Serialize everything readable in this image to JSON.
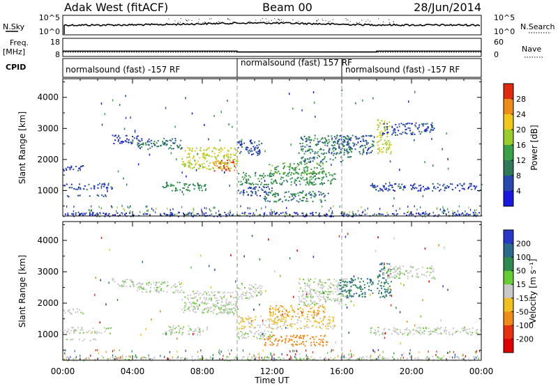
{
  "header": {
    "station": "Adak West (fitACF)",
    "beam": "Beam 00",
    "date": "28/Jun/2014"
  },
  "noise_panel": {
    "left_label": "N.Sky",
    "left_ticks": [
      "10^5",
      "10^0"
    ],
    "right_label": "N.Search",
    "right_ticks": [
      "10^5",
      "10^0"
    ]
  },
  "freq_panel": {
    "left_label_1": "Freq.",
    "left_label_2": "[MHz]",
    "left_ticks": [
      "18",
      "8"
    ],
    "right_label": "Nave",
    "right_ticks": [
      "60",
      "0"
    ],
    "freq_steps": [
      {
        "from": 0.0,
        "to": 10.0,
        "value": 10.8
      },
      {
        "from": 10.0,
        "to": 18.0,
        "value": 10.2
      },
      {
        "from": 18.0,
        "to": 24.0,
        "value": 10.8
      }
    ]
  },
  "cpid_panel": {
    "label": "CPID",
    "segments": [
      {
        "start": 0.0,
        "text": "normalsound (fast) -157 RF"
      },
      {
        "start": 10.0,
        "text": "normalsound (fast) 157 RF"
      },
      {
        "start": 16.0,
        "text": "normalsound (fast) -157 RF"
      }
    ]
  },
  "x_axis": {
    "label": "Time UT",
    "ticks": [
      "00:00",
      "04:00",
      "08:00",
      "12:00",
      "16:00",
      "20:00",
      "00:00"
    ],
    "range_hours": [
      0,
      24
    ],
    "markers_hours": [
      10,
      16
    ]
  },
  "power_panel": {
    "ylabel": "Slant Range [km]",
    "yticks": [
      "1000",
      "2000",
      "3000",
      "4000"
    ],
    "ylim": [
      180,
      4600
    ],
    "colorbar_label": "Power [dB]",
    "colorbar_ticks": [
      "4",
      "8",
      "12",
      "16",
      "20",
      "24",
      "28"
    ],
    "colors": [
      "#1818e0",
      "#2848b0",
      "#2e7a58",
      "#3aa04a",
      "#9acc2a",
      "#f0c818",
      "#f08a18",
      "#e02a10"
    ]
  },
  "velocity_panel": {
    "ylabel": "Slant Range [km]",
    "yticks": [
      "1000",
      "2000",
      "3000",
      "4000"
    ],
    "ylim": [
      180,
      4600
    ],
    "colorbar_label": "Velocity [m s⁻¹]",
    "colorbar_ticks": [
      "200",
      "100",
      "50",
      "15",
      "-15",
      "-50",
      "-100",
      "-200"
    ],
    "colors": [
      "#2838c8",
      "#2a6a8a",
      "#2e8a4e",
      "#66cc33",
      "#c8c8c8",
      "#f0c020",
      "#f08a18",
      "#e83010",
      "#e00000"
    ]
  },
  "chart_data": {
    "type": "heatmap",
    "title": "Adak West (fitACF)",
    "xlabel": "Time UT",
    "ylabel": "Slant Range [km]",
    "x_range": [
      0,
      24
    ],
    "y_range": [
      180,
      4600
    ],
    "echo_regions": [
      {
        "t0": 0.0,
        "t1": 1.2,
        "r0": 1650,
        "r1": 1850,
        "power_db": 6,
        "velocity": 0
      },
      {
        "t0": 0.0,
        "t1": 2.8,
        "r0": 1050,
        "r1": 1250,
        "power_db": 5,
        "velocity": 0
      },
      {
        "t0": 0.0,
        "t1": 2.6,
        "r0": 820,
        "r1": 880,
        "power_db": 6,
        "velocity": 0
      },
      {
        "t0": 2.8,
        "t1": 4.4,
        "r0": 2500,
        "r1": 2800,
        "power_db": 5,
        "velocity": 0
      },
      {
        "t0": 4.2,
        "t1": 6.8,
        "r0": 2350,
        "r1": 2700,
        "power_db": 9,
        "velocity": 0
      },
      {
        "t0": 5.7,
        "t1": 8.3,
        "r0": 1000,
        "r1": 1300,
        "power_db": 12,
        "velocity": 0
      },
      {
        "t0": 6.8,
        "t1": 10.0,
        "r0": 1700,
        "r1": 2400,
        "power_db": 20,
        "velocity": 0
      },
      {
        "t0": 8.6,
        "t1": 9.9,
        "r0": 1650,
        "r1": 2000,
        "power_db": 28,
        "velocity": 0
      },
      {
        "t0": 10.0,
        "t1": 11.4,
        "r0": 2150,
        "r1": 2650,
        "power_db": 6,
        "velocity": 0
      },
      {
        "t0": 10.0,
        "t1": 15.6,
        "r0": 1200,
        "r1": 1600,
        "power_db": 12,
        "velocity": -15
      },
      {
        "t0": 11.8,
        "t1": 15.0,
        "r0": 1550,
        "r1": 1950,
        "power_db": 14,
        "velocity": -50
      },
      {
        "t0": 10.0,
        "t1": 12.0,
        "r0": 850,
        "r1": 1150,
        "power_db": 6,
        "velocity": 0
      },
      {
        "t0": 11.5,
        "t1": 15.2,
        "r0": 650,
        "r1": 1000,
        "power_db": 10,
        "velocity": -60
      },
      {
        "t0": 13.5,
        "t1": 16.5,
        "r0": 1950,
        "r1": 2800,
        "power_db": 10,
        "velocity": 0
      },
      {
        "t0": 15.8,
        "t1": 17.8,
        "r0": 2200,
        "r1": 2800,
        "power_db": 7,
        "velocity": 50
      },
      {
        "t0": 18.0,
        "t1": 18.8,
        "r0": 2200,
        "r1": 3300,
        "power_db": 20,
        "velocity": 50
      },
      {
        "t0": 18.3,
        "t1": 21.3,
        "r0": 2800,
        "r1": 3200,
        "power_db": 6,
        "velocity": 0
      },
      {
        "t0": 17.6,
        "t1": 24.0,
        "r0": 1000,
        "r1": 1250,
        "power_db": 5,
        "velocity": 0
      },
      {
        "t0": 0.0,
        "t1": 24.0,
        "r0": 180,
        "r1": 320,
        "power_db": 5,
        "velocity": 0
      }
    ]
  }
}
